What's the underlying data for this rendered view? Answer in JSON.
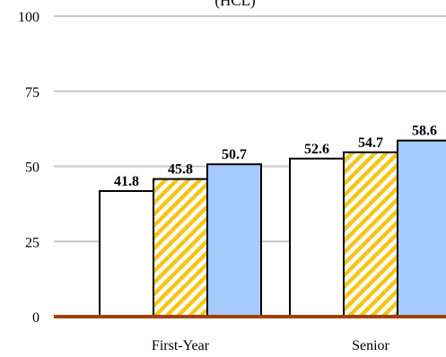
{
  "chart_data": {
    "type": "bar",
    "title_fragment": "(HCL)",
    "categories": [
      "First-Year",
      "Senior"
    ],
    "series": [
      {
        "values": [
          41.8,
          52.6
        ],
        "fill": "#ffffff",
        "pattern": "none"
      },
      {
        "values": [
          45.8,
          54.7
        ],
        "fill": "#f5c518",
        "pattern": "diagonal-stripes"
      },
      {
        "values": [
          50.7,
          58.6
        ],
        "fill": "#a6cbff",
        "pattern": "none"
      }
    ],
    "ylim": [
      0,
      100
    ],
    "yticks": [
      0,
      25,
      50,
      75,
      100
    ],
    "grid": true,
    "xlabel": "",
    "ylabel": "",
    "colors": {
      "gridline": "#c8c8c8",
      "baseline": "#a0410d",
      "bar_stroke": "#000000",
      "stripe_background": "#ffffff"
    }
  }
}
